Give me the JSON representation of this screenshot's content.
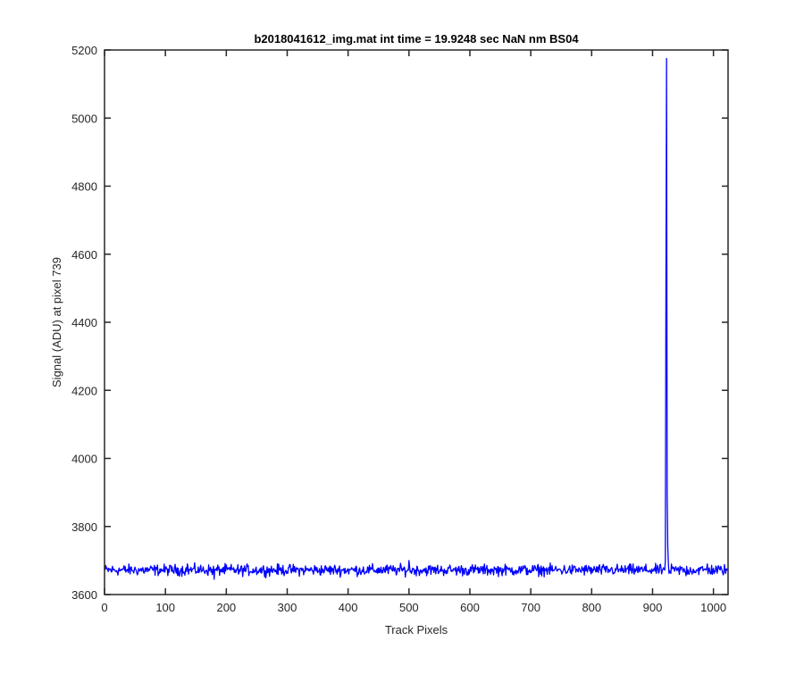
{
  "chart_data": {
    "type": "line",
    "title": "b2018041612_img.mat int time = 19.9248 sec  NaN nm BS04",
    "xlabel": "Track Pixels",
    "ylabel": "Signal (ADU) at pixel 739",
    "xlim": [
      0,
      1024
    ],
    "ylim": [
      3600,
      5200
    ],
    "xticks": [
      0,
      100,
      200,
      300,
      400,
      500,
      600,
      700,
      800,
      900,
      1000
    ],
    "yticks": [
      3600,
      3800,
      4000,
      4200,
      4400,
      4600,
      4800,
      5000,
      5200
    ],
    "grid": false,
    "legend": "none",
    "series": [
      {
        "color": "#0000ff",
        "baseline": 3672,
        "noise_amplitude": 8,
        "n_points": 1024,
        "x": [
          0,
          136,
          180,
          220,
          500,
          920,
          921,
          922,
          923,
          924,
          925,
          926,
          927,
          929,
          940,
          955,
          990,
          1024
        ],
        "y": [
          3676,
          3690,
          3645,
          3660,
          3700,
          3672,
          3700,
          4520,
          5175,
          3900,
          3740,
          3690,
          3662,
          3668,
          3670,
          3655,
          3690,
          3672
        ]
      }
    ]
  }
}
